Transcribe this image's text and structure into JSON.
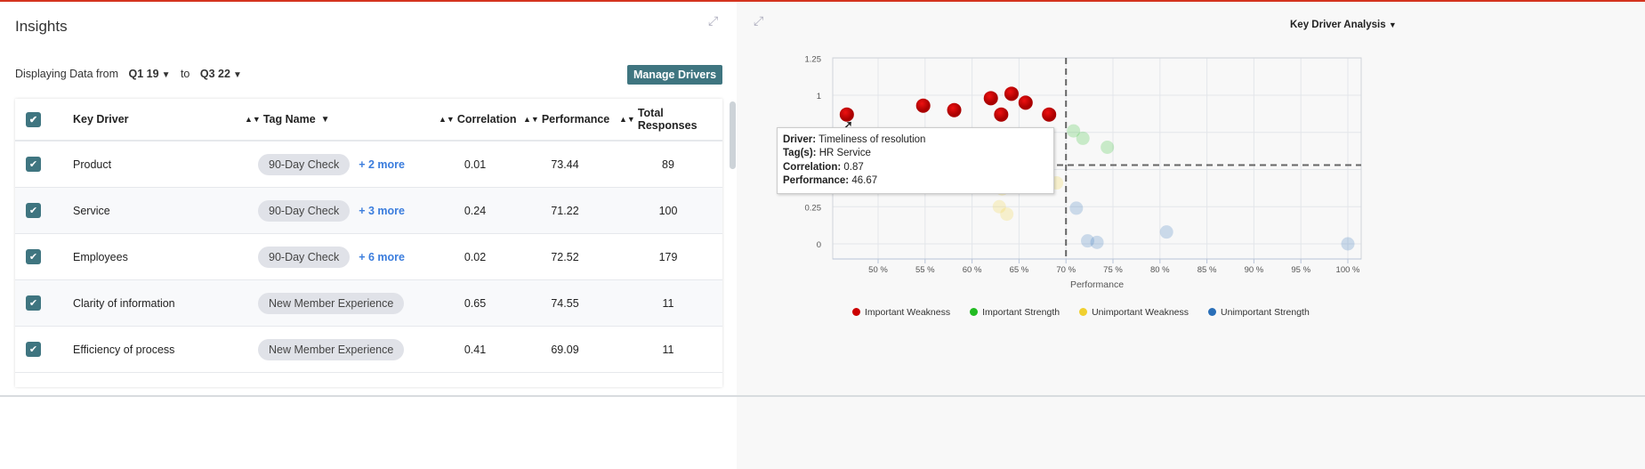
{
  "insights": {
    "title": "Insights",
    "range_label": "Displaying Data from",
    "from": "Q1 19",
    "to_label": "to",
    "to": "Q3 22",
    "manage_button": "Manage Drivers"
  },
  "table": {
    "columns": [
      "Key Driver",
      "Tag Name",
      "Correlation",
      "Performance",
      "Total Responses"
    ],
    "rows": [
      {
        "driver": "Product",
        "tag": "90-Day Check",
        "more": "+ 2 more",
        "correlation": "0.01",
        "performance": "73.44",
        "responses": "89"
      },
      {
        "driver": "Service",
        "tag": "90-Day Check",
        "more": "+ 3 more",
        "correlation": "0.24",
        "performance": "71.22",
        "responses": "100"
      },
      {
        "driver": "Employees",
        "tag": "90-Day Check",
        "more": "+ 6 more",
        "correlation": "0.02",
        "performance": "72.52",
        "responses": "179"
      },
      {
        "driver": "Clarity of information",
        "tag": "New Member Experience",
        "more": "",
        "correlation": "0.65",
        "performance": "74.55",
        "responses": "11"
      },
      {
        "driver": "Efficiency of process",
        "tag": "New Member Experience",
        "more": "",
        "correlation": "0.41",
        "performance": "69.09",
        "responses": "11"
      }
    ]
  },
  "analysis": {
    "selector": "Key Driver Analysis"
  },
  "tooltip": {
    "driver_label": "Driver:",
    "driver": "Timeliness of resolution",
    "tags_label": "Tag(s):",
    "tags": "HR Service",
    "corr_label": "Correlation:",
    "corr": "0.87",
    "perf_label": "Performance:",
    "perf": "46.67"
  },
  "chart_data": {
    "type": "scatter",
    "xlabel": "Performance",
    "ylabel": "",
    "xlim": [
      45,
      101.5
    ],
    "ylim": [
      -0.1,
      1.25
    ],
    "xticks": [
      "50 %",
      "55 %",
      "60 %",
      "65 %",
      "70 %",
      "75 %",
      "80 %",
      "85 %",
      "90 %",
      "95 %",
      "100 %"
    ],
    "yticks": [
      "0",
      "0.25",
      "0.5",
      "0.75",
      "1",
      "1.25"
    ],
    "visible_yticks": [
      "0",
      "0.25",
      "1",
      "1.25"
    ],
    "thresholds": {
      "x": 70,
      "y": 0.53
    },
    "grid": true,
    "legend_placement": "bottom",
    "series": [
      {
        "name": "Important Weakness",
        "color": "#cc0000",
        "points": [
          [
            46.67,
            0.87
          ],
          [
            54.8,
            0.93
          ],
          [
            58.1,
            0.9
          ],
          [
            62.0,
            0.98
          ],
          [
            64.2,
            1.01
          ],
          [
            63.1,
            0.87
          ],
          [
            65.7,
            0.95
          ],
          [
            68.2,
            0.87
          ]
        ]
      },
      {
        "name": "Important Strength",
        "color": "#22bb22",
        "faded": true,
        "points": [
          [
            70.8,
            0.76
          ],
          [
            71.8,
            0.71
          ],
          [
            74.4,
            0.65
          ]
        ]
      },
      {
        "name": "Unimportant Weakness",
        "color": "#f0d030",
        "faded": true,
        "points": [
          [
            69.0,
            0.41
          ],
          [
            63.2,
            0.37
          ],
          [
            62.9,
            0.25
          ],
          [
            63.7,
            0.2
          ]
        ]
      },
      {
        "name": "Unimportant Strength",
        "color": "#2a6fb8",
        "faded": true,
        "points": [
          [
            71.1,
            0.24
          ],
          [
            72.3,
            0.02
          ],
          [
            73.3,
            0.01
          ],
          [
            80.7,
            0.08
          ],
          [
            100,
            0.0
          ]
        ]
      }
    ]
  }
}
